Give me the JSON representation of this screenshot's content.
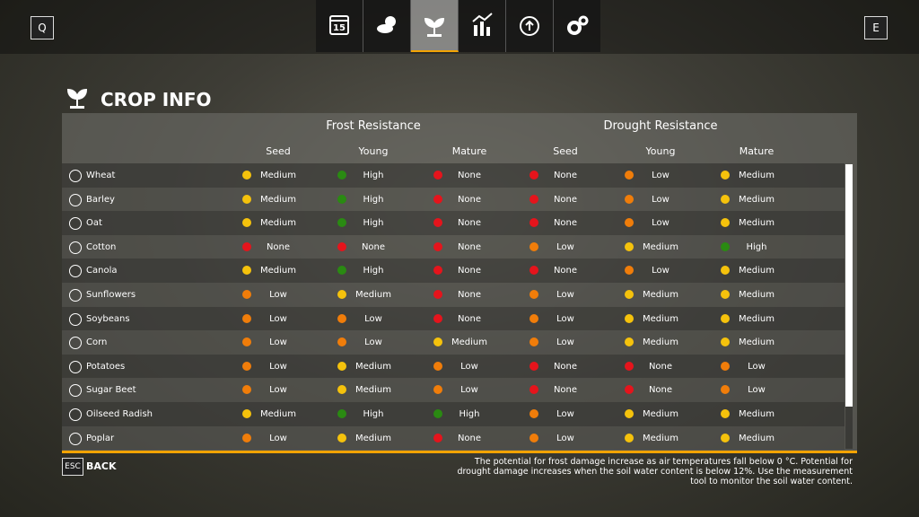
{
  "header": {
    "left_key": "Q",
    "right_key": "E",
    "calendar_day": "15",
    "title": "CROP INFO"
  },
  "table": {
    "groups": [
      "Frost Resistance",
      "Drought Resistance"
    ],
    "columns": [
      "Seed",
      "Young",
      "Mature",
      "Seed",
      "Young",
      "Mature"
    ],
    "level_colors": {
      "None": "#e5141c",
      "Low": "#f07d0a",
      "Medium": "#f5c20c",
      "High": "#2a8a12"
    },
    "rows": [
      [
        "Wheat",
        "Medium",
        "High",
        "None",
        "None",
        "Low",
        "Medium"
      ],
      [
        "Barley",
        "Medium",
        "High",
        "None",
        "None",
        "Low",
        "Medium"
      ],
      [
        "Oat",
        "Medium",
        "High",
        "None",
        "None",
        "Low",
        "Medium"
      ],
      [
        "Cotton",
        "None",
        "None",
        "None",
        "Low",
        "Medium",
        "High"
      ],
      [
        "Canola",
        "Medium",
        "High",
        "None",
        "None",
        "Low",
        "Medium"
      ],
      [
        "Sunflowers",
        "Low",
        "Medium",
        "None",
        "Low",
        "Medium",
        "Medium"
      ],
      [
        "Soybeans",
        "Low",
        "Low",
        "None",
        "Low",
        "Medium",
        "Medium"
      ],
      [
        "Corn",
        "Low",
        "Low",
        "Medium",
        "Low",
        "Medium",
        "Medium"
      ],
      [
        "Potatoes",
        "Low",
        "Medium",
        "Low",
        "None",
        "None",
        "Low"
      ],
      [
        "Sugar Beet",
        "Low",
        "Medium",
        "Low",
        "None",
        "None",
        "Low"
      ],
      [
        "Oilseed Radish",
        "Medium",
        "High",
        "High",
        "Low",
        "Medium",
        "Medium"
      ],
      [
        "Poplar",
        "Low",
        "Medium",
        "None",
        "Low",
        "Medium",
        "Medium"
      ]
    ]
  },
  "footer": {
    "key": "ESC",
    "action": "BACK",
    "note": [
      "The potential for frost damage increase as air temperatures fall below 0 °C. Potential for",
      "drought damage increases when the soil water content is below 12%. Use the measurement",
      "tool to monitor the soil water content."
    ]
  }
}
